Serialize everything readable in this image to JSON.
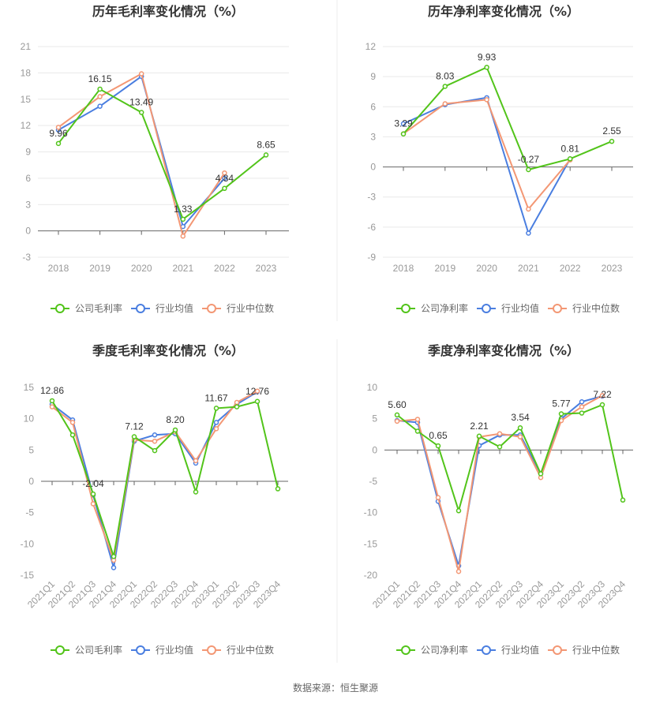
{
  "source": "数据来源：恒生聚源",
  "colors": {
    "company": "#52c41a",
    "industry_avg": "#4a7ee0",
    "industry_median": "#f39774"
  },
  "chart_data": [
    {
      "type": "line",
      "title": "历年毛利率变化情况（%）",
      "categories": [
        "2018",
        "2019",
        "2020",
        "2021",
        "2022",
        "2023"
      ],
      "ylim": [
        -3,
        21
      ],
      "yticks": [
        -3,
        0,
        3,
        6,
        9,
        12,
        15,
        18,
        21
      ],
      "rotate_x": false,
      "grid": true,
      "legend_position": "bottom",
      "series": [
        {
          "name": "公司毛利率",
          "key": "company",
          "values": [
            9.96,
            16.15,
            13.49,
            1.33,
            4.84,
            8.65
          ],
          "labels": [
            "9.96",
            "16.15",
            "13.49",
            "1.33",
            "4.84",
            "8.65"
          ]
        },
        {
          "name": "行业均值",
          "key": "industry_avg",
          "values": [
            11.5,
            14.2,
            17.6,
            0.5,
            6.0,
            null
          ]
        },
        {
          "name": "行业中位数",
          "key": "industry_median",
          "values": [
            11.8,
            15.3,
            17.9,
            -0.6,
            6.6,
            null
          ]
        }
      ]
    },
    {
      "type": "line",
      "title": "历年净利率变化情况（%）",
      "categories": [
        "2018",
        "2019",
        "2020",
        "2021",
        "2022",
        "2023"
      ],
      "ylim": [
        -9,
        12
      ],
      "yticks": [
        -9,
        -6,
        -3,
        0,
        3,
        6,
        9,
        12
      ],
      "rotate_x": false,
      "grid": true,
      "legend_position": "bottom",
      "series": [
        {
          "name": "公司净利率",
          "key": "company",
          "values": [
            3.29,
            8.03,
            9.93,
            -0.27,
            0.81,
            2.55
          ],
          "labels": [
            "3.29",
            "8.03",
            "9.93",
            "-0.27",
            "0.81",
            "2.55"
          ]
        },
        {
          "name": "行业均值",
          "key": "industry_avg",
          "values": [
            4.3,
            6.2,
            6.9,
            -6.6,
            0.8,
            null
          ]
        },
        {
          "name": "行业中位数",
          "key": "industry_median",
          "values": [
            3.3,
            6.3,
            6.7,
            -4.2,
            0.7,
            null
          ]
        }
      ]
    },
    {
      "type": "line",
      "title": "季度毛利率变化情况（%）",
      "categories": [
        "2021Q1",
        "2021Q2",
        "2021Q3",
        "2021Q4",
        "2022Q1",
        "2022Q2",
        "2022Q3",
        "2022Q4",
        "2023Q1",
        "2023Q2",
        "2023Q3",
        "2023Q4"
      ],
      "ylim": [
        -15,
        15
      ],
      "yticks": [
        -15,
        -10,
        -5,
        0,
        5,
        10,
        15
      ],
      "rotate_x": true,
      "grid": false,
      "legend_position": "bottom",
      "series": [
        {
          "name": "公司毛利率",
          "key": "company",
          "values": [
            12.86,
            7.4,
            -2.04,
            -12.0,
            7.12,
            4.9,
            8.2,
            -1.7,
            11.67,
            11.9,
            12.76,
            -1.2
          ],
          "labels": [
            "12.86",
            null,
            "-2.04",
            null,
            "7.12",
            null,
            "8.20",
            null,
            "11.67",
            null,
            "12.76",
            null
          ]
        },
        {
          "name": "行业均值",
          "key": "industry_avg",
          "values": [
            12.3,
            9.8,
            -2.2,
            -13.8,
            6.4,
            7.4,
            7.6,
            2.9,
            9.4,
            12.3,
            14.3,
            null
          ]
        },
        {
          "name": "行业中位数",
          "key": "industry_median",
          "values": [
            11.9,
            9.4,
            -3.6,
            -12.6,
            6.6,
            6.4,
            7.9,
            3.3,
            8.4,
            12.6,
            14.4,
            null
          ]
        }
      ]
    },
    {
      "type": "line",
      "title": "季度净利率变化情况（%）",
      "categories": [
        "2021Q1",
        "2021Q2",
        "2021Q3",
        "2021Q4",
        "2022Q1",
        "2022Q2",
        "2022Q3",
        "2022Q4",
        "2023Q1",
        "2023Q2",
        "2023Q3",
        "2023Q4"
      ],
      "ylim": [
        -20,
        10
      ],
      "yticks": [
        -20,
        -15,
        -10,
        -5,
        0,
        5,
        10
      ],
      "rotate_x": true,
      "grid": false,
      "legend_position": "bottom",
      "series": [
        {
          "name": "公司净利率",
          "key": "company",
          "values": [
            5.6,
            3.0,
            0.65,
            -9.7,
            2.21,
            0.5,
            3.54,
            -3.8,
            5.77,
            5.9,
            7.22,
            -8.0
          ],
          "labels": [
            "5.60",
            null,
            "0.65",
            null,
            "2.21",
            null,
            "3.54",
            null,
            "5.77",
            null,
            "7.22",
            null
          ]
        },
        {
          "name": "行业均值",
          "key": "industry_avg",
          "values": [
            4.7,
            4.4,
            -8.2,
            -18.5,
            0.7,
            2.4,
            2.4,
            -3.8,
            5.0,
            7.7,
            8.6,
            null
          ]
        },
        {
          "name": "行业中位数",
          "key": "industry_median",
          "values": [
            4.6,
            4.9,
            -7.6,
            -19.4,
            2.1,
            2.6,
            2.1,
            -4.4,
            4.7,
            6.9,
            8.7,
            null
          ]
        }
      ]
    }
  ]
}
